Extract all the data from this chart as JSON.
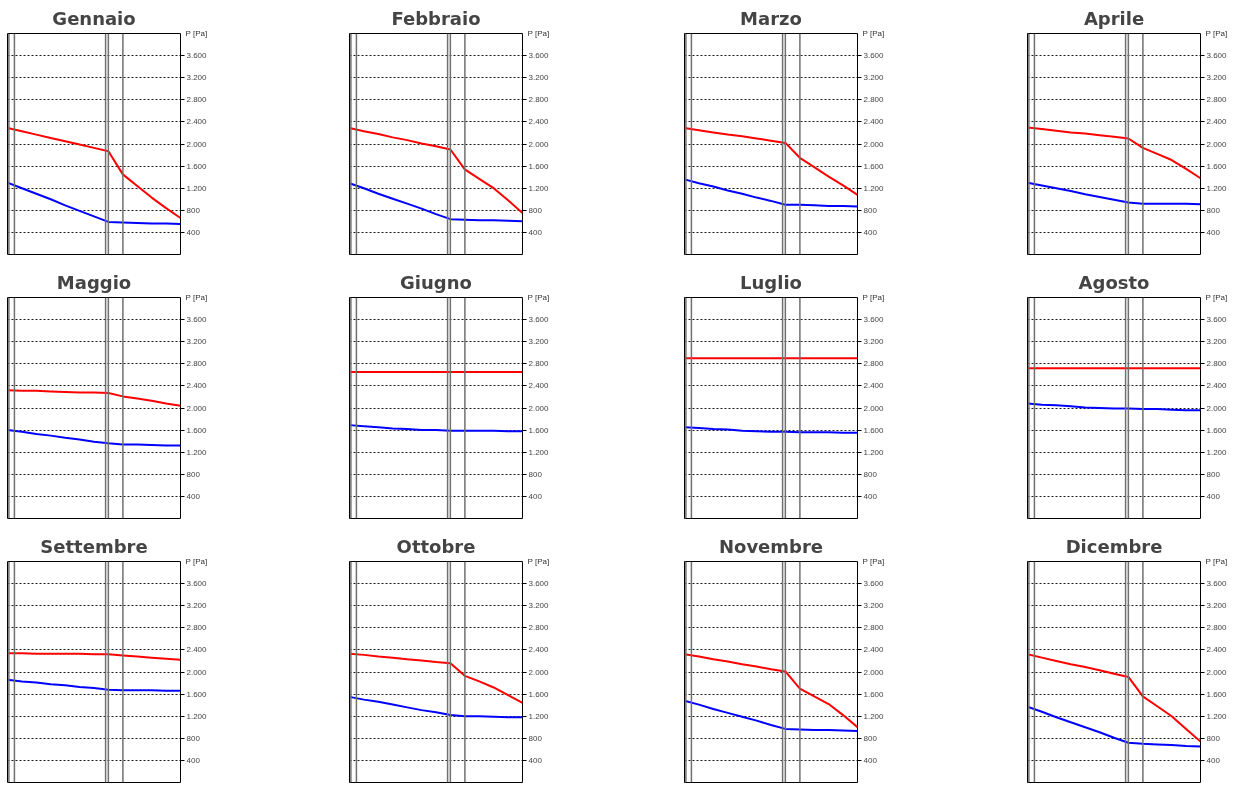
{
  "chart_data": [
    {
      "type": "line",
      "title": "Gennaio",
      "ylabel": "P [Pa]",
      "categories": [
        null,
        null,
        null,
        null,
        null,
        null,
        null,
        null,
        null,
        null,
        null,
        null,
        null
      ],
      "ylim": [
        0,
        4000
      ],
      "yticks": [
        400,
        800,
        {
          "value": 1200,
          "label": "1.200"
        },
        {
          "value": 1600,
          "label": "1.600"
        },
        {
          "value": 2000,
          "label": "2.000"
        },
        {
          "value": 2400,
          "label": "2.400"
        },
        {
          "value": 2800,
          "label": "2.800"
        },
        {
          "value": 3200,
          "label": "3.200"
        },
        {
          "value": 3600,
          "label": "3.600"
        }
      ],
      "grid": "y",
      "tick_labels": "y",
      "series": [
        {
          "color": "#ff0000",
          "values": [
            2290,
            2230,
            2170,
            2110,
            2050,
            1990,
            1930,
            1870,
            1450,
            1240,
            1030,
            840,
            660
          ]
        },
        {
          "color": "#0000ff",
          "values": [
            1300,
            1200,
            1100,
            1000,
            890,
            790,
            690,
            590,
            580,
            570,
            560,
            560,
            550
          ]
        }
      ]
    },
    {
      "type": "line",
      "title": "Febbraio",
      "ylabel": "P [Pa]",
      "categories": [
        null,
        null,
        null,
        null,
        null,
        null,
        null,
        null,
        null,
        null,
        null,
        null,
        null
      ],
      "ylim": [
        0,
        4000
      ],
      "yticks": [
        400,
        800,
        {
          "value": 1200,
          "label": "1.200"
        },
        {
          "value": 1600,
          "label": "1.600"
        },
        {
          "value": 2000,
          "label": "2.000"
        },
        {
          "value": 2400,
          "label": "2.400"
        },
        {
          "value": 2800,
          "label": "2.800"
        },
        {
          "value": 3200,
          "label": "3.200"
        },
        {
          "value": 3600,
          "label": "3.600"
        }
      ],
      "grid": "y",
      "tick_labels": "y",
      "series": [
        {
          "color": "#ff0000",
          "values": [
            2290,
            2230,
            2180,
            2120,
            2070,
            2010,
            1960,
            1900,
            1540,
            1370,
            1200,
            980,
            750
          ]
        },
        {
          "color": "#0000ff",
          "values": [
            1290,
            1200,
            1100,
            1010,
            920,
            830,
            730,
            640,
            630,
            620,
            620,
            610,
            600
          ]
        }
      ]
    },
    {
      "type": "line",
      "title": "Marzo",
      "ylabel": "P [Pa]",
      "categories": [
        null,
        null,
        null,
        null,
        null,
        null,
        null,
        null,
        null,
        null,
        null,
        null,
        null
      ],
      "ylim": [
        0,
        4000
      ],
      "yticks": [
        400,
        800,
        {
          "value": 1200,
          "label": "1.200"
        },
        {
          "value": 1600,
          "label": "1.600"
        },
        {
          "value": 2000,
          "label": "2.000"
        },
        {
          "value": 2400,
          "label": "2.400"
        },
        {
          "value": 2800,
          "label": "2.800"
        },
        {
          "value": 3200,
          "label": "3.200"
        },
        {
          "value": 3600,
          "label": "3.600"
        }
      ],
      "grid": "y",
      "tick_labels": "y",
      "series": [
        {
          "color": "#ff0000",
          "values": [
            2290,
            2250,
            2210,
            2170,
            2140,
            2100,
            2060,
            2020,
            1750,
            1580,
            1410,
            1250,
            1080
          ]
        },
        {
          "color": "#0000ff",
          "values": [
            1360,
            1290,
            1230,
            1160,
            1100,
            1030,
            970,
            900,
            900,
            890,
            880,
            880,
            870
          ]
        }
      ]
    },
    {
      "type": "line",
      "title": "Aprile",
      "ylabel": "P [Pa]",
      "categories": [
        null,
        null,
        null,
        null,
        null,
        null,
        null,
        null,
        null,
        null,
        null,
        null,
        null
      ],
      "ylim": [
        0,
        4000
      ],
      "yticks": [
        400,
        800,
        {
          "value": 1200,
          "label": "1.200"
        },
        {
          "value": 1600,
          "label": "1.600"
        },
        {
          "value": 2000,
          "label": "2.000"
        },
        {
          "value": 2400,
          "label": "2.400"
        },
        {
          "value": 2800,
          "label": "2.800"
        },
        {
          "value": 3200,
          "label": "3.200"
        },
        {
          "value": 3600,
          "label": "3.600"
        }
      ],
      "grid": "y",
      "tick_labels": "y",
      "series": [
        {
          "color": "#ff0000",
          "values": [
            2300,
            2270,
            2240,
            2210,
            2190,
            2160,
            2130,
            2100,
            1930,
            1820,
            1710,
            1550,
            1380
          ]
        },
        {
          "color": "#0000ff",
          "values": [
            1300,
            1250,
            1200,
            1150,
            1090,
            1040,
            990,
            940,
            920,
            920,
            920,
            920,
            910
          ]
        }
      ]
    },
    {
      "type": "line",
      "title": "Maggio",
      "ylabel": "P [Pa]",
      "categories": [
        null,
        null,
        null,
        null,
        null,
        null,
        null,
        null,
        null,
        null,
        null,
        null,
        null
      ],
      "ylim": [
        0,
        4000
      ],
      "yticks": [
        400,
        800,
        {
          "value": 1200,
          "label": "1.200"
        },
        {
          "value": 1600,
          "label": "1.600"
        },
        {
          "value": 2000,
          "label": "2.000"
        },
        {
          "value": 2400,
          "label": "2.400"
        },
        {
          "value": 2800,
          "label": "2.800"
        },
        {
          "value": 3200,
          "label": "3.200"
        },
        {
          "value": 3600,
          "label": "3.600"
        }
      ],
      "grid": "y",
      "tick_labels": "y",
      "series": [
        {
          "color": "#ff0000",
          "values": [
            2320,
            2310,
            2310,
            2300,
            2290,
            2280,
            2280,
            2270,
            2210,
            2170,
            2130,
            2080,
            2040
          ]
        },
        {
          "color": "#0000ff",
          "values": [
            1600,
            1570,
            1530,
            1500,
            1460,
            1430,
            1390,
            1360,
            1340,
            1340,
            1330,
            1320,
            1320
          ]
        }
      ]
    },
    {
      "type": "line",
      "title": "Giugno",
      "ylabel": "P [Pa]",
      "categories": [
        null,
        null,
        null,
        null,
        null,
        null,
        null,
        null,
        null,
        null,
        null,
        null,
        null
      ],
      "ylim": [
        0,
        4000
      ],
      "yticks": [
        400,
        800,
        {
          "value": 1200,
          "label": "1.200"
        },
        {
          "value": 1600,
          "label": "1.600"
        },
        {
          "value": 2000,
          "label": "2.000"
        },
        {
          "value": 2400,
          "label": "2.400"
        },
        {
          "value": 2800,
          "label": "2.800"
        },
        {
          "value": 3200,
          "label": "3.200"
        },
        {
          "value": 3600,
          "label": "3.600"
        }
      ],
      "grid": "y",
      "tick_labels": "y",
      "series": [
        {
          "color": "#ff0000",
          "values": [
            2650,
            2650,
            2650,
            2650,
            2650,
            2650,
            2650,
            2650,
            2650,
            2650,
            2650,
            2650,
            2650
          ]
        },
        {
          "color": "#0000ff",
          "values": [
            1690,
            1670,
            1650,
            1630,
            1620,
            1600,
            1600,
            1590,
            1590,
            1590,
            1590,
            1580,
            1580
          ]
        }
      ]
    },
    {
      "type": "line",
      "title": "Luglio",
      "ylabel": "P [Pa]",
      "categories": [
        null,
        null,
        null,
        null,
        null,
        null,
        null,
        null,
        null,
        null,
        null,
        null,
        null
      ],
      "ylim": [
        0,
        4000
      ],
      "yticks": [
        400,
        800,
        {
          "value": 1200,
          "label": "1.200"
        },
        {
          "value": 1600,
          "label": "1.600"
        },
        {
          "value": 2000,
          "label": "2.000"
        },
        {
          "value": 2400,
          "label": "2.400"
        },
        {
          "value": 2800,
          "label": "2.800"
        },
        {
          "value": 3200,
          "label": "3.200"
        },
        {
          "value": 3600,
          "label": "3.600"
        }
      ],
      "grid": "y",
      "tick_labels": "y",
      "series": [
        {
          "color": "#ff0000",
          "values": [
            2900,
            2900,
            2900,
            2900,
            2900,
            2900,
            2900,
            2900,
            2900,
            2900,
            2900,
            2900,
            2900
          ]
        },
        {
          "color": "#0000ff",
          "values": [
            1650,
            1640,
            1620,
            1610,
            1590,
            1580,
            1570,
            1570,
            1560,
            1560,
            1560,
            1550,
            1550
          ]
        }
      ]
    },
    {
      "type": "line",
      "title": "Agosto",
      "ylabel": "P [Pa]",
      "categories": [
        null,
        null,
        null,
        null,
        null,
        null,
        null,
        null,
        null,
        null,
        null,
        null,
        null
      ],
      "ylim": [
        0,
        4000
      ],
      "yticks": [
        400,
        800,
        {
          "value": 1200,
          "label": "1.200"
        },
        {
          "value": 1600,
          "label": "1.600"
        },
        {
          "value": 2000,
          "label": "2.000"
        },
        {
          "value": 2400,
          "label": "2.400"
        },
        {
          "value": 2800,
          "label": "2.800"
        },
        {
          "value": 3200,
          "label": "3.200"
        },
        {
          "value": 3600,
          "label": "3.600"
        }
      ],
      "grid": "y",
      "tick_labels": "y",
      "series": [
        {
          "color": "#ff0000",
          "values": [
            2720,
            2720,
            2720,
            2720,
            2720,
            2720,
            2720,
            2720,
            2720,
            2720,
            2720,
            2720,
            2720
          ]
        },
        {
          "color": "#0000ff",
          "values": [
            2080,
            2060,
            2050,
            2030,
            2010,
            2000,
            1990,
            1990,
            1980,
            1980,
            1970,
            1960,
            1960
          ]
        }
      ]
    },
    {
      "type": "line",
      "title": "Settembre",
      "ylabel": "P [Pa]",
      "categories": [
        null,
        null,
        null,
        null,
        null,
        null,
        null,
        null,
        null,
        null,
        null,
        null,
        null
      ],
      "ylim": [
        0,
        4000
      ],
      "yticks": [
        400,
        800,
        {
          "value": 1200,
          "label": "1.200"
        },
        {
          "value": 1600,
          "label": "1.600"
        },
        {
          "value": 2000,
          "label": "2.000"
        },
        {
          "value": 2400,
          "label": "2.400"
        },
        {
          "value": 2800,
          "label": "2.800"
        },
        {
          "value": 3200,
          "label": "3.200"
        },
        {
          "value": 3600,
          "label": "3.600"
        }
      ],
      "grid": "y",
      "tick_labels": "y",
      "series": [
        {
          "color": "#ff0000",
          "values": [
            2340,
            2340,
            2330,
            2330,
            2330,
            2330,
            2320,
            2320,
            2300,
            2280,
            2260,
            2240,
            2220
          ]
        },
        {
          "color": "#0000ff",
          "values": [
            1860,
            1830,
            1810,
            1780,
            1760,
            1730,
            1710,
            1680,
            1670,
            1670,
            1670,
            1660,
            1660
          ]
        }
      ]
    },
    {
      "type": "line",
      "title": "Ottobre",
      "ylabel": "P [Pa]",
      "categories": [
        null,
        null,
        null,
        null,
        null,
        null,
        null,
        null,
        null,
        null,
        null,
        null,
        null
      ],
      "ylim": [
        0,
        4000
      ],
      "yticks": [
        400,
        800,
        {
          "value": 1200,
          "label": "1.200"
        },
        {
          "value": 1600,
          "label": "1.600"
        },
        {
          "value": 2000,
          "label": "2.000"
        },
        {
          "value": 2400,
          "label": "2.400"
        },
        {
          "value": 2800,
          "label": "2.800"
        },
        {
          "value": 3200,
          "label": "3.200"
        },
        {
          "value": 3600,
          "label": "3.600"
        }
      ],
      "grid": "y",
      "tick_labels": "y",
      "series": [
        {
          "color": "#ff0000",
          "values": [
            2330,
            2310,
            2280,
            2260,
            2230,
            2210,
            2180,
            2160,
            1930,
            1830,
            1720,
            1580,
            1440
          ]
        },
        {
          "color": "#0000ff",
          "values": [
            1550,
            1500,
            1460,
            1410,
            1360,
            1310,
            1270,
            1220,
            1200,
            1200,
            1190,
            1180,
            1180
          ]
        }
      ]
    },
    {
      "type": "line",
      "title": "Novembre",
      "ylabel": "P [Pa]",
      "categories": [
        null,
        null,
        null,
        null,
        null,
        null,
        null,
        null,
        null,
        null,
        null,
        null,
        null
      ],
      "ylim": [
        0,
        4000
      ],
      "yticks": [
        400,
        800,
        {
          "value": 1200,
          "label": "1.200"
        },
        {
          "value": 1600,
          "label": "1.600"
        },
        {
          "value": 2000,
          "label": "2.000"
        },
        {
          "value": 2400,
          "label": "2.400"
        },
        {
          "value": 2800,
          "label": "2.800"
        },
        {
          "value": 3200,
          "label": "3.200"
        },
        {
          "value": 3600,
          "label": "3.600"
        }
      ],
      "grid": "y",
      "tick_labels": "y",
      "series": [
        {
          "color": "#ff0000",
          "values": [
            2320,
            2280,
            2230,
            2190,
            2140,
            2100,
            2050,
            2010,
            1700,
            1560,
            1420,
            1220,
            1000
          ]
        },
        {
          "color": "#0000ff",
          "values": [
            1480,
            1410,
            1330,
            1260,
            1190,
            1120,
            1040,
            970,
            960,
            950,
            950,
            940,
            930
          ]
        }
      ]
    },
    {
      "type": "line",
      "title": "Dicembre",
      "ylabel": "P [Pa]",
      "categories": [
        null,
        null,
        null,
        null,
        null,
        null,
        null,
        null,
        null,
        null,
        null,
        null,
        null
      ],
      "ylim": [
        0,
        4000
      ],
      "yticks": [
        400,
        800,
        {
          "value": 1200,
          "label": "1.200"
        },
        {
          "value": 1600,
          "label": "1.600"
        },
        {
          "value": 2000,
          "label": "2.000"
        },
        {
          "value": 2400,
          "label": "2.400"
        },
        {
          "value": 2800,
          "label": "2.800"
        },
        {
          "value": 3200,
          "label": "3.200"
        },
        {
          "value": 3600,
          "label": "3.600"
        }
      ],
      "grid": "y",
      "tick_labels": "y",
      "series": [
        {
          "color": "#ff0000",
          "values": [
            2320,
            2260,
            2200,
            2140,
            2090,
            2030,
            1970,
            1910,
            1560,
            1380,
            1200,
            970,
            740
          ]
        },
        {
          "color": "#0000ff",
          "values": [
            1370,
            1280,
            1180,
            1090,
            1000,
            910,
            810,
            720,
            700,
            690,
            680,
            660,
            650
          ]
        }
      ]
    }
  ]
}
